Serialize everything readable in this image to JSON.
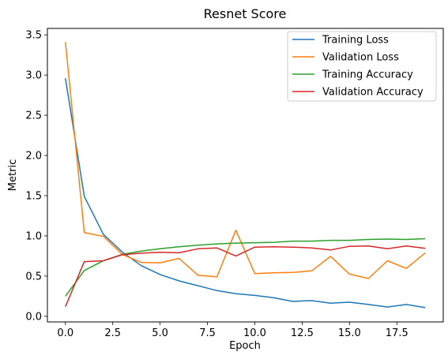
{
  "chart_data": {
    "type": "line",
    "title": "Resnet Score",
    "xlabel": "Epoch",
    "ylabel": "Metric",
    "xlim": [
      -0.95,
      19.95
    ],
    "ylim": [
      -0.07,
      3.58
    ],
    "xticks": [
      0.0,
      2.5,
      5.0,
      7.5,
      10.0,
      12.5,
      15.0,
      17.5
    ],
    "xtick_labels": [
      "0.0",
      "2.5",
      "5.0",
      "7.5",
      "10.0",
      "12.5",
      "15.0",
      "17.5"
    ],
    "yticks": [
      0.0,
      0.5,
      1.0,
      1.5,
      2.0,
      2.5,
      3.0,
      3.5
    ],
    "ytick_labels": [
      "0.0",
      "0.5",
      "1.0",
      "1.5",
      "2.0",
      "2.5",
      "3.0",
      "3.5"
    ],
    "grid": false,
    "legend_position": "top-right",
    "x": [
      0,
      1,
      2,
      3,
      4,
      5,
      6,
      7,
      8,
      9,
      10,
      11,
      12,
      13,
      14,
      15,
      16,
      17,
      18,
      19
    ],
    "series": [
      {
        "name": "Training Loss",
        "color": "#1f77b4",
        "values": [
          2.96,
          1.49,
          1.02,
          0.8,
          0.63,
          0.52,
          0.44,
          0.38,
          0.32,
          0.28,
          0.26,
          0.23,
          0.185,
          0.195,
          0.163,
          0.175,
          0.147,
          0.115,
          0.147,
          0.108
        ]
      },
      {
        "name": "Validation Loss",
        "color": "#ff7f0e",
        "values": [
          3.41,
          1.04,
          0.995,
          0.77,
          0.67,
          0.665,
          0.72,
          0.51,
          0.49,
          1.07,
          0.53,
          0.54,
          0.545,
          0.565,
          0.745,
          0.525,
          0.47,
          0.69,
          0.595,
          0.79
        ]
      },
      {
        "name": "Training Accuracy",
        "color": "#2ca02c",
        "values": [
          0.25,
          0.57,
          0.69,
          0.77,
          0.81,
          0.84,
          0.865,
          0.885,
          0.9,
          0.91,
          0.915,
          0.92,
          0.935,
          0.935,
          0.945,
          0.945,
          0.955,
          0.96,
          0.955,
          0.965
        ]
      },
      {
        "name": "Validation Accuracy",
        "color": "#d62728",
        "values": [
          0.12,
          0.68,
          0.69,
          0.765,
          0.785,
          0.795,
          0.79,
          0.84,
          0.85,
          0.75,
          0.86,
          0.865,
          0.86,
          0.85,
          0.825,
          0.87,
          0.875,
          0.84,
          0.875,
          0.845
        ]
      }
    ]
  }
}
